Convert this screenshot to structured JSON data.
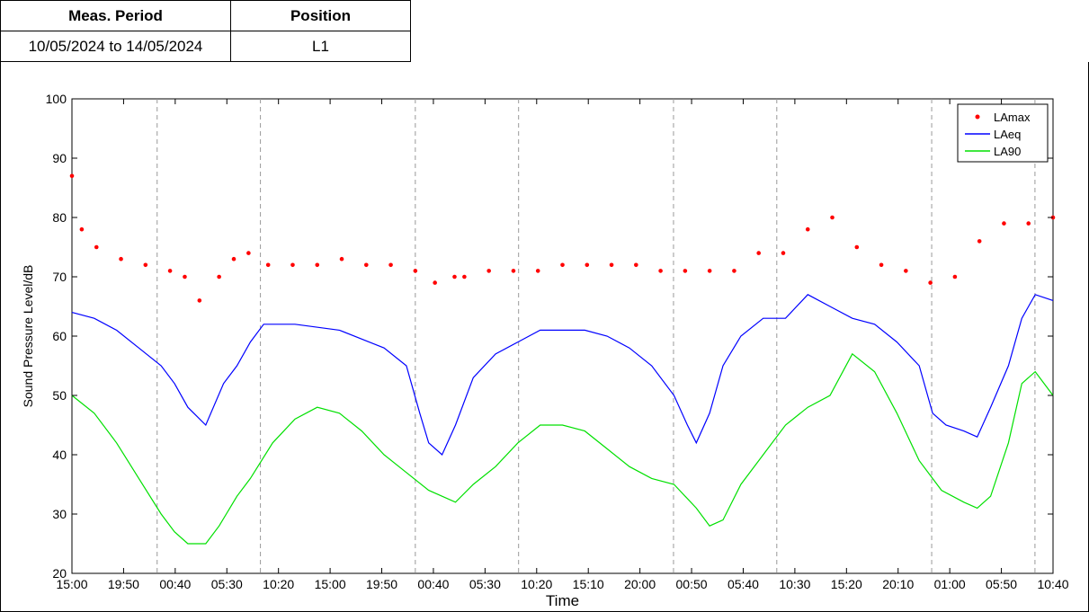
{
  "info_table": {
    "headers": [
      "Meas. Period",
      "Position"
    ],
    "values": [
      "10/05/2024 to 14/05/2024",
      "L1"
    ]
  },
  "chart_data": {
    "type": "line",
    "xlabel": "Time",
    "ylabel": "Sound Pressure Level/dB",
    "ylim": [
      20,
      100
    ],
    "yticks": [
      20,
      30,
      40,
      50,
      60,
      70,
      80,
      90,
      100
    ],
    "xticks": [
      "15:00",
      "19:50",
      "00:40",
      "05:30",
      "10:20",
      "15:00",
      "19:50",
      "00:40",
      "05:30",
      "10:20",
      "15:10",
      "20:00",
      "00:50",
      "05:40",
      "10:30",
      "15:20",
      "20:10",
      "01:00",
      "05:50",
      "10:40"
    ],
    "day_boundaries_after_tick": [
      2.0,
      4.0,
      7.0,
      9.0,
      12.0,
      14.0,
      17.0,
      19.0
    ],
    "legend": {
      "position": "top-right",
      "entries": [
        "LAmax",
        "LAeq",
        "LA90"
      ]
    },
    "series": [
      {
        "name": "LAmax",
        "style": "points",
        "color": "#ff0000",
        "values": [
          [
            0,
            87
          ],
          [
            0.2,
            78
          ],
          [
            0.5,
            75
          ],
          [
            1,
            73
          ],
          [
            1.5,
            72
          ],
          [
            2,
            71
          ],
          [
            2.3,
            70
          ],
          [
            2.6,
            66
          ],
          [
            3,
            70
          ],
          [
            3.3,
            73
          ],
          [
            3.6,
            74
          ],
          [
            4,
            72
          ],
          [
            4.5,
            72
          ],
          [
            5,
            72
          ],
          [
            5.5,
            73
          ],
          [
            6,
            72
          ],
          [
            6.5,
            72
          ],
          [
            7,
            71
          ],
          [
            7.4,
            69
          ],
          [
            7.8,
            70
          ],
          [
            8,
            70
          ],
          [
            8.5,
            71
          ],
          [
            9,
            71
          ],
          [
            9.5,
            71
          ],
          [
            10,
            72
          ],
          [
            10.5,
            72
          ],
          [
            11,
            72
          ],
          [
            11.5,
            72
          ],
          [
            12,
            71
          ],
          [
            12.5,
            71
          ],
          [
            13,
            71
          ],
          [
            13.5,
            71
          ],
          [
            14,
            74
          ],
          [
            14.5,
            74
          ],
          [
            15,
            78
          ],
          [
            15.5,
            80
          ],
          [
            16,
            75
          ],
          [
            16.5,
            72
          ],
          [
            17,
            71
          ],
          [
            17.5,
            69
          ],
          [
            18,
            70
          ],
          [
            18.5,
            76
          ],
          [
            19,
            79
          ],
          [
            19.5,
            79
          ],
          [
            20,
            80
          ]
        ]
      },
      {
        "name": "LAeq",
        "style": "line",
        "color": "#0000ff",
        "values": [
          [
            0,
            64
          ],
          [
            0.5,
            63
          ],
          [
            1,
            61
          ],
          [
            1.5,
            58
          ],
          [
            2,
            55
          ],
          [
            2.3,
            52
          ],
          [
            2.6,
            48
          ],
          [
            3,
            45
          ],
          [
            3.4,
            52
          ],
          [
            3.7,
            55
          ],
          [
            4,
            59
          ],
          [
            4.3,
            62
          ],
          [
            4.7,
            62
          ],
          [
            5,
            62
          ],
          [
            6,
            61
          ],
          [
            7,
            58
          ],
          [
            7.5,
            55
          ],
          [
            7.8,
            47
          ],
          [
            8,
            42
          ],
          [
            8.3,
            40
          ],
          [
            8.6,
            45
          ],
          [
            9,
            53
          ],
          [
            9.5,
            57
          ],
          [
            10,
            59
          ],
          [
            10.5,
            61
          ],
          [
            11,
            61
          ],
          [
            11.5,
            61
          ],
          [
            12,
            60
          ],
          [
            12.5,
            58
          ],
          [
            13,
            55
          ],
          [
            13.5,
            50
          ],
          [
            13.8,
            45
          ],
          [
            14,
            42
          ],
          [
            14.3,
            47
          ],
          [
            14.6,
            55
          ],
          [
            15,
            60
          ],
          [
            15.5,
            63
          ],
          [
            16,
            63
          ],
          [
            16.5,
            67
          ],
          [
            17,
            65
          ],
          [
            17.5,
            63
          ],
          [
            18,
            62
          ],
          [
            18.5,
            59
          ],
          [
            19,
            55
          ],
          [
            19.3,
            47
          ],
          [
            19.6,
            45
          ],
          [
            20,
            44
          ],
          [
            20.3,
            43
          ],
          [
            20.6,
            48
          ],
          [
            21,
            55
          ],
          [
            21.3,
            63
          ],
          [
            21.6,
            67
          ],
          [
            22,
            66
          ]
        ]
      },
      {
        "name": "LA90",
        "style": "line",
        "color": "#00e000",
        "values": [
          [
            0,
            50
          ],
          [
            0.5,
            47
          ],
          [
            1,
            42
          ],
          [
            1.5,
            36
          ],
          [
            2,
            30
          ],
          [
            2.3,
            27
          ],
          [
            2.6,
            25
          ],
          [
            3,
            25
          ],
          [
            3.3,
            28
          ],
          [
            3.7,
            33
          ],
          [
            4,
            36
          ],
          [
            4.5,
            42
          ],
          [
            5,
            46
          ],
          [
            5.5,
            48
          ],
          [
            6,
            47
          ],
          [
            6.5,
            44
          ],
          [
            7,
            40
          ],
          [
            7.5,
            37
          ],
          [
            8,
            34
          ],
          [
            8.3,
            33
          ],
          [
            8.6,
            32
          ],
          [
            9,
            35
          ],
          [
            9.5,
            38
          ],
          [
            10,
            42
          ],
          [
            10.5,
            45
          ],
          [
            11,
            45
          ],
          [
            11.5,
            44
          ],
          [
            12,
            41
          ],
          [
            12.5,
            38
          ],
          [
            13,
            36
          ],
          [
            13.5,
            35
          ],
          [
            14,
            31
          ],
          [
            14.3,
            28
          ],
          [
            14.6,
            29
          ],
          [
            15,
            35
          ],
          [
            15.5,
            40
          ],
          [
            16,
            45
          ],
          [
            16.5,
            48
          ],
          [
            17,
            50
          ],
          [
            17.5,
            57
          ],
          [
            18,
            54
          ],
          [
            18.5,
            47
          ],
          [
            19,
            39
          ],
          [
            19.5,
            34
          ],
          [
            20,
            32
          ],
          [
            20.3,
            31
          ],
          [
            20.6,
            33
          ],
          [
            21,
            42
          ],
          [
            21.3,
            52
          ],
          [
            21.6,
            54
          ],
          [
            22,
            50
          ]
        ]
      }
    ]
  }
}
